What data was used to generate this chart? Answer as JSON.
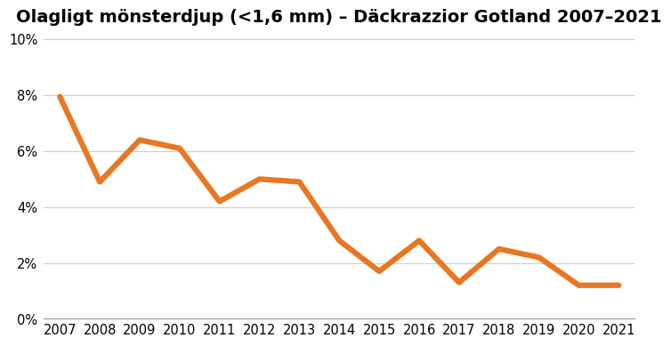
{
  "title": "Olagligt mönsterdjup (<1,6 mm) – Däckrazzior Gotland 2007–2021",
  "years": [
    2007,
    2008,
    2009,
    2010,
    2011,
    2012,
    2013,
    2014,
    2015,
    2016,
    2017,
    2018,
    2019,
    2020,
    2021
  ],
  "values": [
    0.0795,
    0.049,
    0.064,
    0.061,
    0.042,
    0.05,
    0.049,
    0.028,
    0.017,
    0.028,
    0.013,
    0.025,
    0.022,
    0.012,
    0.012
  ],
  "line_color": "#E87722",
  "line_width": 4.5,
  "ylim": [
    0,
    0.1
  ],
  "yticks": [
    0,
    0.02,
    0.04,
    0.06,
    0.08,
    0.1
  ],
  "background_color": "#ffffff",
  "title_fontsize": 14,
  "tick_fontsize": 10.5,
  "grid_color": "#cccccc",
  "spine_color": "#999999"
}
